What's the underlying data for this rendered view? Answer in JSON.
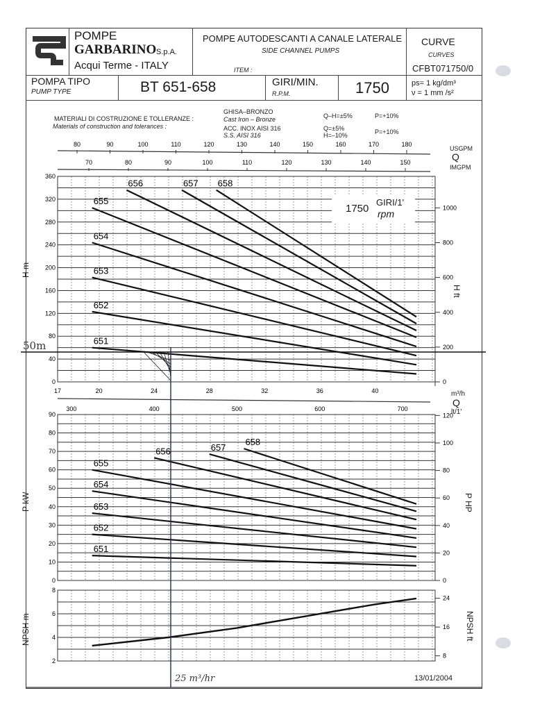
{
  "header": {
    "brand_line1": "POMPE",
    "brand_line2": "GARBARINO",
    "brand_suffix": "S.p.A.",
    "brand_location": "Acqui Terme - ITALY",
    "title_it": "POMPE AUTODESCANTI A CANALE LATERALE",
    "title_en": "SIDE CHANNEL PUMPS",
    "item_label": "ITEM :",
    "curve_it": "CURVE",
    "curve_en": "CURVES",
    "curve_code": "CFBT071750/0",
    "pump_type_it": "POMPA TIPO",
    "pump_type_en": "PUMP TYPE",
    "pump_type_value": "BT 651-658",
    "rpm_it": "GIRI/MIN.",
    "rpm_en": "R.P.M.",
    "rpm_value": "1750",
    "density": "ps= 1 kg/dm³",
    "viscosity": "ν = 1 mm /s²"
  },
  "materials": {
    "label_it": "MATERIALI DI COSTRUZIONE E TOLLERANZE :",
    "label_en": "Materials of construction and tolerances :",
    "row1_it": "GHISA–BRONZO",
    "row1_en": "Cast Iron  –  Bronze",
    "row1_tol_qh": "Q–H=±5%",
    "row1_tol_p": "P=+10%",
    "row2_it": "ACC. INOX AISI 316",
    "row2_en": "S.S. AISI 316",
    "row2_tol_q": "Q=±5%",
    "row2_tol_h": "H=–10%",
    "row2_tol_p": "P=+10%"
  },
  "speed_box": {
    "value": "1750",
    "unit_it": "GIRI/1'",
    "unit_en": "rpm"
  },
  "annotations": {
    "handwritten_head": "50m",
    "handwritten_flow": "25 m³/hr",
    "date": "13/01/2004"
  },
  "axes": {
    "usgpm_label": "USGPM",
    "q_label": "Q",
    "imgpm_label": "IMGPM",
    "usgpm_ticks": [
      "80",
      "90",
      "100",
      "110",
      "120",
      "130",
      "140",
      "150",
      "160",
      "170",
      "180"
    ],
    "imgpm_ticks": [
      "70",
      "80",
      "90",
      "100",
      "110",
      "120",
      "130",
      "140",
      "150"
    ],
    "h_m_label": "H m",
    "h_m_ticks": [
      "0",
      "40",
      "80",
      "120",
      "160",
      "200",
      "240",
      "280",
      "320",
      "360"
    ],
    "h_ft_label": "H ft",
    "h_ft_ticks": [
      "0",
      "200",
      "400",
      "600",
      "800",
      "1000"
    ],
    "m3h_label": "m³/h",
    "m3h_ticks": [
      "17",
      "20",
      "24",
      "28",
      "32",
      "36",
      "40"
    ],
    "lmin_label": "lt/1'",
    "q2_label": "Q",
    "lmin_ticks": [
      "300",
      "400",
      "500",
      "600",
      "700"
    ],
    "p_kw_label": "P kW",
    "p_kw_ticks": [
      "0",
      "10",
      "20",
      "30",
      "40",
      "50",
      "60",
      "70",
      "80",
      "90"
    ],
    "p_hp_label": "P HP",
    "p_hp_ticks": [
      "0",
      "20",
      "40",
      "60",
      "80",
      "100",
      "120"
    ],
    "npsh_m_label": "NPSH m",
    "npsh_m_ticks": [
      "2",
      "4",
      "6",
      "8"
    ],
    "npsh_ft_label": "NPSH ft",
    "npsh_ft_ticks": [
      "8",
      "16",
      "24"
    ]
  },
  "chart_data": [
    {
      "type": "line",
      "title": "Head vs Flow (H-Q) — 1750 rpm",
      "xlabel": "Q (m³/h)",
      "ylabel": "H (m)",
      "xlim": [
        17,
        43
      ],
      "ylim": [
        0,
        360
      ],
      "series": [
        {
          "name": "651",
          "x": [
            19.5,
            43
          ],
          "y": [
            60,
            14
          ]
        },
        {
          "name": "652",
          "x": [
            19.5,
            43
          ],
          "y": [
            123,
            30
          ]
        },
        {
          "name": "653",
          "x": [
            19.5,
            43
          ],
          "y": [
            183,
            46
          ]
        },
        {
          "name": "654",
          "x": [
            19.5,
            43
          ],
          "y": [
            244,
            62
          ]
        },
        {
          "name": "655",
          "x": [
            19.5,
            43
          ],
          "y": [
            305,
            78
          ]
        },
        {
          "name": "656",
          "x": [
            22,
            43
          ],
          "y": [
            336,
            90
          ]
        },
        {
          "name": "657",
          "x": [
            26,
            43
          ],
          "y": [
            336,
            102
          ]
        },
        {
          "name": "658",
          "x": [
            28.5,
            43
          ],
          "y": [
            336,
            114
          ]
        }
      ]
    },
    {
      "type": "line",
      "title": "Power vs Flow",
      "xlabel": "Q (m³/h)",
      "ylabel": "P (kW)",
      "xlim": [
        17,
        43
      ],
      "ylim": [
        0,
        90
      ],
      "series": [
        {
          "name": "651",
          "x": [
            19.5,
            43
          ],
          "y": [
            13.5,
            8
          ]
        },
        {
          "name": "652",
          "x": [
            19.5,
            43
          ],
          "y": [
            25,
            13
          ]
        },
        {
          "name": "653",
          "x": [
            19.5,
            43
          ],
          "y": [
            36.5,
            18
          ]
        },
        {
          "name": "654",
          "x": [
            19.5,
            43
          ],
          "y": [
            48.5,
            23
          ]
        },
        {
          "name": "655",
          "x": [
            19.5,
            43
          ],
          "y": [
            60,
            28
          ]
        },
        {
          "name": "656",
          "x": [
            24,
            43
          ],
          "y": [
            66.5,
            33
          ]
        },
        {
          "name": "657",
          "x": [
            28,
            43
          ],
          "y": [
            68.5,
            37.5
          ]
        },
        {
          "name": "658",
          "x": [
            30.5,
            43
          ],
          "y": [
            71.5,
            41.5
          ]
        }
      ]
    },
    {
      "type": "line",
      "title": "NPSH required vs Flow",
      "xlabel": "Q (m³/h)",
      "ylabel": "NPSH (m)",
      "xlim": [
        17,
        43
      ],
      "ylim": [
        2,
        8
      ],
      "series": [
        {
          "name": "NPSH",
          "x": [
            19.5,
            25,
            30,
            35,
            40,
            43
          ],
          "y": [
            3.3,
            4.0,
            4.8,
            5.8,
            6.8,
            7.3
          ]
        }
      ]
    }
  ]
}
